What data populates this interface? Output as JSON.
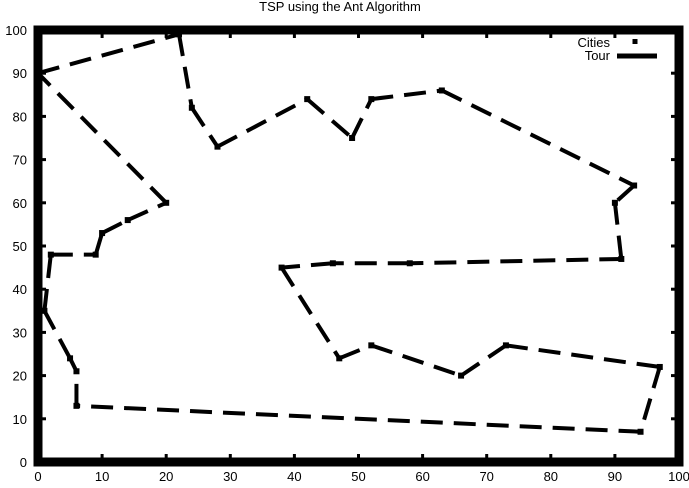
{
  "chart_data": {
    "type": "line",
    "title": "TSP using the Ant Algorithm",
    "xlabel": "",
    "ylabel": "",
    "xlim": [
      0,
      100
    ],
    "ylim": [
      0,
      100
    ],
    "xticks": [
      0,
      10,
      20,
      30,
      40,
      50,
      60,
      70,
      80,
      90,
      100
    ],
    "yticks": [
      0,
      10,
      20,
      30,
      40,
      50,
      60,
      70,
      80,
      90,
      100
    ],
    "grid": false,
    "legend_position": "top-right",
    "series": [
      {
        "name": "Cities",
        "style": "points",
        "color": "#000000",
        "x": [
          0,
          22,
          24,
          28,
          42,
          49,
          52,
          63,
          93,
          90,
          91,
          58,
          46,
          38,
          47,
          52,
          66,
          73,
          97,
          94,
          6,
          6,
          5,
          1,
          2,
          9,
          10,
          14,
          20
        ],
        "y": [
          90,
          99,
          82,
          73,
          84,
          75,
          84,
          86,
          64,
          60,
          47,
          46,
          46,
          45,
          24,
          27,
          20,
          27,
          22,
          7,
          13,
          21,
          24,
          35,
          48,
          48,
          53,
          56,
          60
        ]
      },
      {
        "name": "Tour",
        "style": "dashed-line",
        "color": "#000000",
        "x": [
          0,
          22,
          24,
          28,
          42,
          49,
          52,
          63,
          93,
          90,
          91,
          58,
          46,
          38,
          47,
          52,
          66,
          73,
          97,
          94,
          6,
          6,
          5,
          1,
          2,
          9,
          10,
          14,
          20,
          0
        ],
        "y": [
          90,
          99,
          82,
          73,
          84,
          75,
          84,
          86,
          64,
          60,
          47,
          46,
          46,
          45,
          24,
          27,
          20,
          27,
          22,
          7,
          13,
          21,
          24,
          35,
          48,
          48,
          53,
          56,
          60,
          90
        ]
      }
    ]
  }
}
